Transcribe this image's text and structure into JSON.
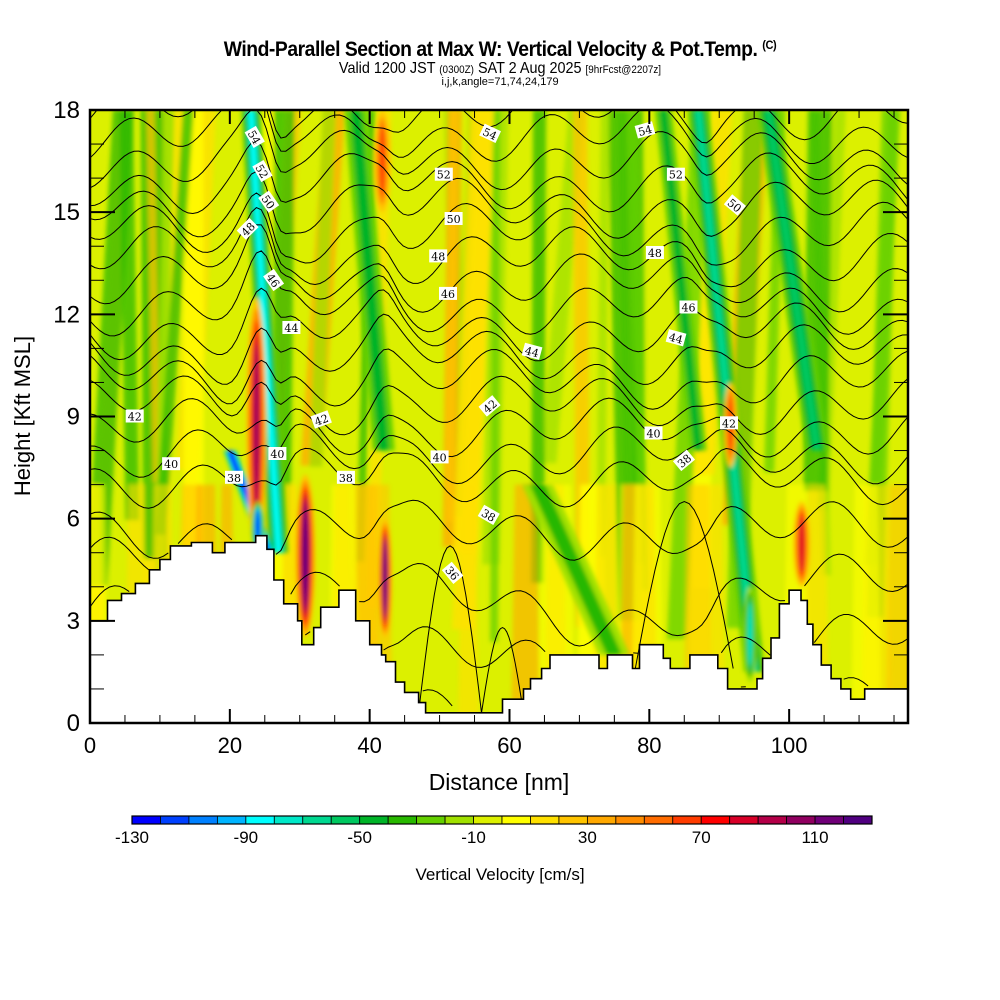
{
  "title": {
    "main": "Wind-Parallel Section at Max W: Vertical Velocity & Pot.Temp.",
    "copyright": "(C)",
    "valid_prefix": "Valid 1200 JST",
    "valid_utc": "(0300Z)",
    "valid_date": "SAT 2 Aug 2025",
    "forecast": "[9hrFcst@2207z]",
    "indices": "i,j,k,angle=71,74,24,179"
  },
  "chart_data": {
    "type": "heatmap",
    "title": "Wind-Parallel Section at Max W: Vertical Velocity & Pot.Temp.",
    "xlabel": "Distance [nm]",
    "ylabel": "Height [Kft MSL]",
    "xlim": [
      0,
      117
    ],
    "ylim": [
      0,
      18
    ],
    "x_ticks": [
      0,
      20,
      40,
      60,
      80,
      100
    ],
    "y_ticks": [
      0,
      3,
      6,
      9,
      12,
      15,
      18
    ],
    "colorbar": {
      "label": "Vertical Velocity [cm/s]",
      "range": [
        -130,
        130
      ],
      "step": 10,
      "tick_labels": [
        "-130",
        "-90",
        "-50",
        "-10",
        "30",
        "70",
        "110"
      ],
      "tick_values": [
        -130,
        -90,
        -50,
        -10,
        30,
        70,
        110
      ],
      "colors": [
        "#0000ff",
        "#0040ff",
        "#0080ff",
        "#00b4ff",
        "#00ffff",
        "#00e8c8",
        "#00d890",
        "#00c860",
        "#00b428",
        "#28b800",
        "#64d000",
        "#a0e000",
        "#dcf000",
        "#ffff00",
        "#ffe000",
        "#ffc400",
        "#ffa800",
        "#ff8c00",
        "#ff6c00",
        "#ff3c00",
        "#ff0000",
        "#d80028",
        "#b40048",
        "#900060",
        "#700078",
        "#500080"
      ]
    },
    "contour_field": "Potential Temperature",
    "contour_labels": [
      {
        "x": 23.5,
        "y": 17.2,
        "value": "54",
        "rot": 60
      },
      {
        "x": 24.6,
        "y": 16.2,
        "value": "52",
        "rot": 60
      },
      {
        "x": 25.5,
        "y": 15.3,
        "value": "50",
        "rot": 55
      },
      {
        "x": 22.6,
        "y": 14.5,
        "value": "48",
        "rot": -45
      },
      {
        "x": 26.2,
        "y": 13.0,
        "value": "46",
        "rot": 55
      },
      {
        "x": 28.8,
        "y": 11.6,
        "value": "44",
        "rot": 0
      },
      {
        "x": 6.4,
        "y": 9.0,
        "value": "42",
        "rot": 0
      },
      {
        "x": 33.1,
        "y": 8.9,
        "value": "42",
        "rot": -20
      },
      {
        "x": 11.6,
        "y": 7.6,
        "value": "40",
        "rot": 0
      },
      {
        "x": 26.8,
        "y": 7.9,
        "value": "40",
        "rot": 0
      },
      {
        "x": 20.6,
        "y": 7.2,
        "value": "38",
        "rot": 0
      },
      {
        "x": 36.6,
        "y": 7.2,
        "value": "38",
        "rot": 0
      },
      {
        "x": 57.2,
        "y": 17.3,
        "value": "54",
        "rot": 25
      },
      {
        "x": 79.4,
        "y": 17.4,
        "value": "54",
        "rot": -15
      },
      {
        "x": 50.6,
        "y": 16.1,
        "value": "52",
        "rot": 0
      },
      {
        "x": 83.8,
        "y": 16.1,
        "value": "52",
        "rot": 0
      },
      {
        "x": 52.0,
        "y": 14.8,
        "value": "50",
        "rot": 0
      },
      {
        "x": 92.2,
        "y": 15.2,
        "value": "50",
        "rot": 40
      },
      {
        "x": 49.8,
        "y": 13.7,
        "value": "48",
        "rot": 0
      },
      {
        "x": 80.8,
        "y": 13.8,
        "value": "48",
        "rot": 0
      },
      {
        "x": 51.2,
        "y": 12.6,
        "value": "46",
        "rot": 0
      },
      {
        "x": 85.6,
        "y": 12.2,
        "value": "46",
        "rot": 0
      },
      {
        "x": 63.2,
        "y": 10.9,
        "value": "44",
        "rot": 15
      },
      {
        "x": 83.8,
        "y": 11.3,
        "value": "44",
        "rot": 15
      },
      {
        "x": 57.2,
        "y": 9.3,
        "value": "42",
        "rot": -40
      },
      {
        "x": 91.4,
        "y": 8.8,
        "value": "42",
        "rot": 0
      },
      {
        "x": 50.0,
        "y": 7.8,
        "value": "40",
        "rot": 0
      },
      {
        "x": 80.6,
        "y": 8.5,
        "value": "40",
        "rot": 0
      },
      {
        "x": 57.0,
        "y": 6.1,
        "value": "38",
        "rot": 30
      },
      {
        "x": 85.0,
        "y": 7.7,
        "value": "38",
        "rot": -40
      },
      {
        "x": 51.8,
        "y": 4.4,
        "value": "36",
        "rot": 50
      }
    ],
    "contour_levels": [
      36,
      37,
      38,
      39,
      40,
      41,
      42,
      43,
      44,
      45,
      46,
      47,
      48,
      49,
      50,
      51,
      52,
      53,
      54,
      55
    ],
    "terrain_profile_kft": [
      [
        0,
        3.0
      ],
      [
        2.5,
        3.0
      ],
      [
        2.5,
        3.6
      ],
      [
        4.5,
        3.6
      ],
      [
        4.5,
        3.8
      ],
      [
        6.5,
        3.8
      ],
      [
        6.5,
        4.1
      ],
      [
        8.5,
        4.1
      ],
      [
        8.5,
        4.5
      ],
      [
        10,
        4.5
      ],
      [
        10,
        4.8
      ],
      [
        11.5,
        4.8
      ],
      [
        11.5,
        5.2
      ],
      [
        14.5,
        5.2
      ],
      [
        14.5,
        5.3
      ],
      [
        17.5,
        5.3
      ],
      [
        17.5,
        5.0
      ],
      [
        19.3,
        5.0
      ],
      [
        19.3,
        5.3
      ],
      [
        22,
        5.3
      ],
      [
        22,
        5.3
      ],
      [
        23.7,
        5.3
      ],
      [
        23.7,
        5.5
      ],
      [
        25.3,
        5.5
      ],
      [
        25.3,
        5.1
      ],
      [
        26.3,
        5.1
      ],
      [
        26.3,
        4.2
      ],
      [
        27.7,
        4.2
      ],
      [
        27.7,
        3.5
      ],
      [
        29.7,
        3.5
      ],
      [
        29.7,
        3.0
      ],
      [
        30.3,
        3.0
      ],
      [
        30.3,
        2.3
      ],
      [
        32,
        2.3
      ],
      [
        32,
        2.8
      ],
      [
        33,
        2.8
      ],
      [
        33,
        3.4
      ],
      [
        35.6,
        3.4
      ],
      [
        35.6,
        3.9
      ],
      [
        38,
        3.9
      ],
      [
        38,
        3.0
      ],
      [
        40,
        3.0
      ],
      [
        40,
        2.3
      ],
      [
        41.7,
        2.3
      ],
      [
        41.7,
        2.0
      ],
      [
        42.3,
        2.0
      ],
      [
        42.3,
        1.8
      ],
      [
        43.7,
        1.8
      ],
      [
        43.7,
        1.2
      ],
      [
        45,
        1.2
      ],
      [
        45,
        0.9
      ],
      [
        47,
        0.9
      ],
      [
        47,
        0.6
      ],
      [
        48,
        0.6
      ],
      [
        48,
        0.3
      ],
      [
        59,
        0.3
      ],
      [
        59,
        0.7
      ],
      [
        62,
        0.7
      ],
      [
        62,
        1.0
      ],
      [
        63,
        1.0
      ],
      [
        63,
        1.3
      ],
      [
        64.6,
        1.3
      ],
      [
        64.6,
        1.6
      ],
      [
        65.8,
        1.6
      ],
      [
        65.8,
        2.0
      ],
      [
        72.8,
        2.0
      ],
      [
        72.8,
        1.6
      ],
      [
        74,
        1.6
      ],
      [
        74,
        2.0
      ],
      [
        77.6,
        2.0
      ],
      [
        77.6,
        1.6
      ],
      [
        78.6,
        1.6
      ],
      [
        78.6,
        2.3
      ],
      [
        82,
        2.3
      ],
      [
        82,
        1.9
      ],
      [
        83,
        1.9
      ],
      [
        83,
        1.6
      ],
      [
        85.8,
        1.6
      ],
      [
        85.8,
        2.0
      ],
      [
        89.8,
        2.0
      ],
      [
        89.8,
        1.6
      ],
      [
        91.2,
        1.6
      ],
      [
        91.2,
        1.0
      ],
      [
        93.4,
        1.0
      ],
      [
        93.4,
        1.0
      ],
      [
        95.4,
        1.0
      ],
      [
        95.4,
        1.3
      ],
      [
        96.2,
        1.3
      ],
      [
        96.2,
        1.9
      ],
      [
        97.4,
        1.9
      ],
      [
        97.4,
        2.5
      ],
      [
        98.6,
        2.5
      ],
      [
        98.6,
        3.5
      ],
      [
        100,
        3.5
      ],
      [
        100,
        3.9
      ],
      [
        101.7,
        3.9
      ],
      [
        101.7,
        3.6
      ],
      [
        102.6,
        3.6
      ],
      [
        102.6,
        2.9
      ],
      [
        103.4,
        2.9
      ],
      [
        103.4,
        2.3
      ],
      [
        104.6,
        2.3
      ],
      [
        104.6,
        1.7
      ],
      [
        106,
        1.7
      ],
      [
        106,
        1.3
      ],
      [
        107.4,
        1.3
      ],
      [
        107.4,
        1.0
      ],
      [
        108.8,
        1.0
      ],
      [
        108.8,
        0.7
      ],
      [
        110.8,
        0.7
      ],
      [
        110.8,
        1.0
      ],
      [
        113,
        1.0
      ],
      [
        113,
        1.0
      ],
      [
        117,
        1.0
      ]
    ],
    "updraft_downdraft_features": [
      {
        "x": 23.8,
        "top": 12.5,
        "bottom": 5.0,
        "w": 1.2,
        "value": 100
      },
      {
        "x": 24.0,
        "top": 6.5,
        "bottom": 5.0,
        "w": 0.8,
        "value": -130
      },
      {
        "x": 30.8,
        "top": 7.3,
        "bottom": 2.5,
        "w": 1.2,
        "value": 120
      },
      {
        "x": 42.2,
        "top": 6.0,
        "bottom": 2.5,
        "w": 0.8,
        "value": 120
      },
      {
        "x": 41.8,
        "top": 18.0,
        "bottom": 15.0,
        "w": 1.0,
        "value": 60
      },
      {
        "x": 101.8,
        "top": 6.5,
        "bottom": 4.0,
        "w": 1.0,
        "value": 80
      },
      {
        "x": 94.4,
        "top": 4.0,
        "bottom": 1.2,
        "w": 0.8,
        "value": -70
      },
      {
        "x": 91.6,
        "top": 10.0,
        "bottom": 7.5,
        "w": 0.8,
        "value": 50
      }
    ]
  }
}
